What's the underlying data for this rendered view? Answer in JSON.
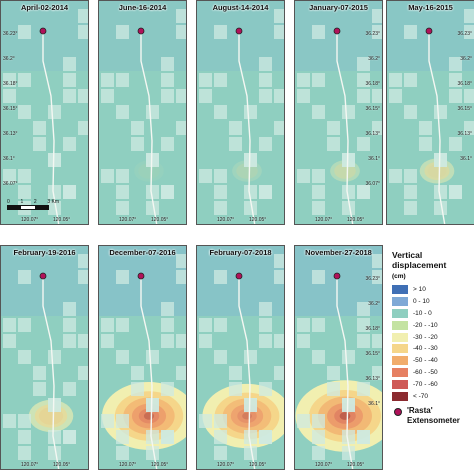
{
  "colors": {
    "background": "#8fcfc0",
    "field_light": "#cde9e2",
    "extensometer": "#b0125a"
  },
  "panels": [
    {
      "id": "p1",
      "date": "April-02-2014",
      "lat_labels": [
        "36.23°",
        "36.2°",
        "36.18°",
        "36.15°",
        "36.13°",
        "36.1°",
        "36.07°"
      ],
      "lon_labels": [
        "120.07°",
        "120.05°"
      ],
      "subsidence": 0.0,
      "scale_bar": true
    },
    {
      "id": "p2",
      "date": "June-16-2014",
      "lat_labels": [],
      "lon_labels": [
        "120.07°",
        "120.05°"
      ],
      "subsidence": 0.05
    },
    {
      "id": "p3",
      "date": "August-14-2014",
      "lat_labels": [],
      "lon_labels": [
        "120.07°",
        "120.05°"
      ],
      "subsidence": 0.12
    },
    {
      "id": "p4",
      "date": "January-07-2015",
      "lat_labels": [
        "36.23°",
        "36.2°",
        "36.18°",
        "36.15°",
        "36.13°",
        "36.1°",
        "36.07°"
      ],
      "lon_labels": [
        "120.07°",
        "120.05°"
      ],
      "subsidence": 0.25
    },
    {
      "id": "p5",
      "date": "May-16-2015",
      "lat_labels": [
        "36.23°",
        "36.2°",
        "36.18°",
        "36.15°",
        "36.13°",
        "36.1°"
      ],
      "lon_labels": [],
      "subsidence": 0.35
    },
    {
      "id": "p6",
      "date": "February-19-2016",
      "lat_labels": [],
      "lon_labels": [
        "120.07°",
        "120.05°"
      ],
      "subsidence": 0.45
    },
    {
      "id": "p7",
      "date": "December-07-2016",
      "lat_labels": [],
      "lon_labels": [
        "120.07°",
        "120.05°"
      ],
      "subsidence": 0.95
    },
    {
      "id": "p8",
      "date": "February-07-2018",
      "lat_labels": [],
      "lon_labels": [
        "120.07°",
        "120.05°"
      ],
      "subsidence": 0.9
    },
    {
      "id": "p9",
      "date": "November-27-2018",
      "lat_labels": [
        "36.23°",
        "36.2°",
        "36.18°",
        "36.15°",
        "36.13°",
        "36.1°"
      ],
      "lon_labels": [
        "120.07°",
        "120.05°"
      ],
      "subsidence": 1.0
    }
  ],
  "scale_bar": {
    "ticks": [
      "0",
      "1",
      "2",
      "3 Km"
    ]
  },
  "legend": {
    "title_line1": "Vertical",
    "title_line2": "displacement",
    "unit": "(cm)",
    "items": [
      {
        "label": "> 10",
        "color": "#3f6fb5"
      },
      {
        "label": "0 - 10",
        "color": "#7fa9d6"
      },
      {
        "label": "-10 - 0",
        "color": "#8fcfc0"
      },
      {
        "label": "-20 - -10",
        "color": "#c4e3a2"
      },
      {
        "label": "-30 - -20",
        "color": "#f1efb0"
      },
      {
        "label": "-40 - -30",
        "color": "#f5d68a"
      },
      {
        "label": "-50 - -40",
        "color": "#f1ac6c"
      },
      {
        "label": "-60 - -50",
        "color": "#e68062"
      },
      {
        "label": "-70 - -60",
        "color": "#cf5a57"
      },
      {
        "label": "< -70",
        "color": "#8b2a2f"
      }
    ]
  },
  "extensometer": {
    "line1": "'Rasta'",
    "line2": "Extensometer"
  }
}
